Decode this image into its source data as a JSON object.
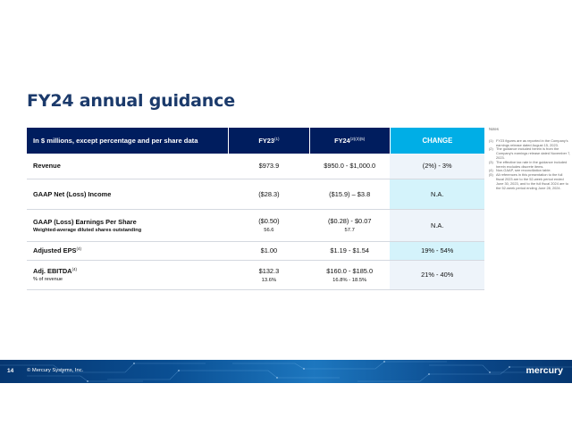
{
  "title": "FY24 annual guidance",
  "table": {
    "header": {
      "label": "In $ millions, except percentage and per share data",
      "fy23": "FY23",
      "fy23_sup": "(1)",
      "fy24": "FY24",
      "fy24_sup": "(2)(3)(5)",
      "change": "CHANGE"
    },
    "rows": [
      {
        "label": "Revenue",
        "fy23": "$973.9",
        "fy24": "$950.0 - $1,000.0",
        "change": "(2%) - 3%"
      },
      {
        "label": "GAAP Net (Loss) Income",
        "fy23": "($28.3)",
        "fy24": "($15.9) – $3.8",
        "change": "N.A."
      },
      {
        "label": "GAAP (Loss) Earnings Per Share",
        "sub": "Weighted-average diluted shares outstanding",
        "fy23": "($0.50)",
        "fy23_sub": "56.6",
        "fy24": "($0.28)  - $0.07",
        "fy24_sub": "57.7",
        "change": "N.A."
      },
      {
        "label": "Adjusted EPS",
        "sup": "(4)",
        "fy23": "$1.00",
        "fy24": "$1.19 - $1.54",
        "change": "19% - 54%"
      },
      {
        "label": "Adj. EBITDA",
        "sup": "(4)",
        "sub": "% of revenue",
        "fy23": "$132.3",
        "fy23_sub": "13.6%",
        "fy24": "$160.0 - $185.0",
        "fy24_sub": "16.8% - 18.5%",
        "change": "21% - 40%"
      }
    ]
  },
  "notes": {
    "heading": "Notes",
    "items": [
      {
        "num": "(1)",
        "text": "FY23 figures are as reported in the Company's earnings release dated August 15, 2023."
      },
      {
        "num": "(2)",
        "text": "The guidance included herein is from the Company's earnings release dated November 7, 2023."
      },
      {
        "num": "(3)",
        "text": "The effective tax rate in the guidance included herein excludes discrete items."
      },
      {
        "num": "(4)",
        "text": "Non-GAAP, see reconciliation table."
      },
      {
        "num": "(5)",
        "text": "All references in this presentation to the full fiscal 2023 are to the 52-week period ended June 30, 2023, and to the full fiscal 2024 are to the 52-week period ending June 28, 2024."
      }
    ]
  },
  "footer": {
    "page": "14",
    "copyright": "© Mercury Systems, Inc.",
    "logo": "mercury"
  }
}
